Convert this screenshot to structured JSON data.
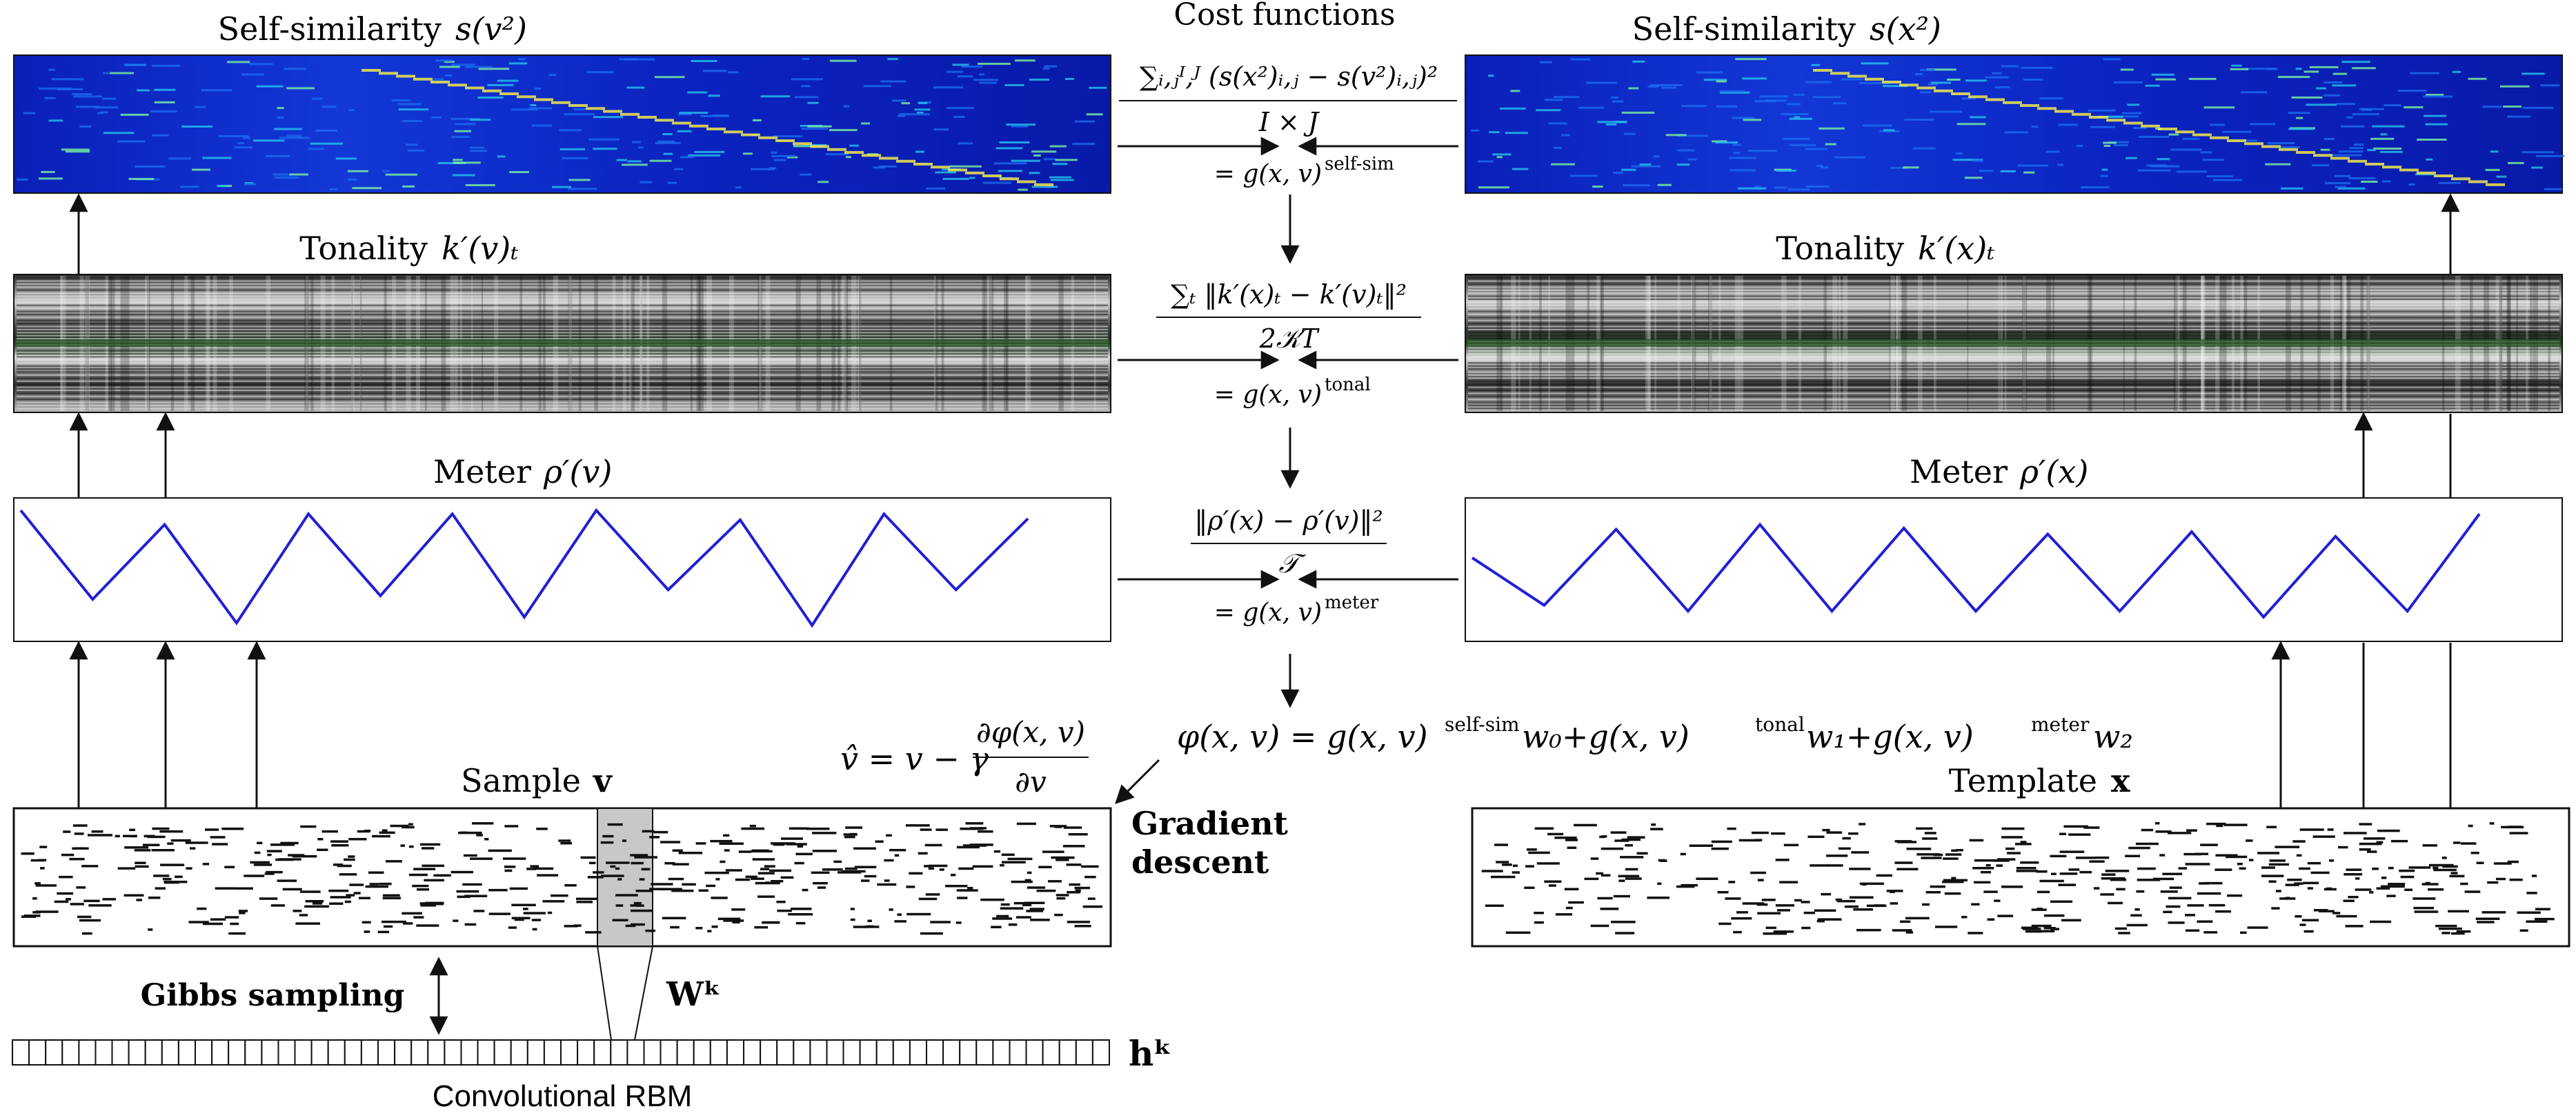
{
  "panels": {
    "selfsim_v": {
      "title": "Self-similarity",
      "symbol": "s(v²)"
    },
    "selfsim_x": {
      "title": "Self-similarity",
      "symbol": "s(x²)"
    },
    "tonality_v": {
      "title": "Tonality",
      "symbol": "k′(v)ₜ"
    },
    "tonality_x": {
      "title": "Tonality",
      "symbol": "k′(x)ₜ"
    },
    "meter_v": {
      "title": "Meter",
      "symbol": "ρ′(v)"
    },
    "meter_x": {
      "title": "Meter",
      "symbol": "ρ′(x)"
    },
    "sample": {
      "title": "Sample",
      "symbol": "v"
    },
    "template": {
      "title": "Template",
      "symbol": "x"
    }
  },
  "cost": {
    "title": "Cost functions",
    "selfsim": {
      "numerator": "∑ᵢ,ⱼᴵ,ᴶ (s(x²)ᵢ,ⱼ − s(v²)ᵢ,ⱼ)²",
      "denominator": "I × J",
      "result": "= g(x, v)",
      "result_sup": "self-sim"
    },
    "tonal": {
      "numerator": "∑ₜ ‖k′(x)ₜ − k′(v)ₜ‖²",
      "denominator": "2𝒦T",
      "result": "= g(x, v)",
      "result_sup": "tonal"
    },
    "meter": {
      "numerator": "‖ρ′(x) − ρ′(v)‖²",
      "denominator": "𝒯",
      "result": "= g(x, v)",
      "result_sup": "meter"
    }
  },
  "objective": {
    "lhs": "φ(x, v) = g(x, v)",
    "sup1": "self-sim",
    "w0": "w₀+g(x, v)",
    "sup2": "tonal",
    "w1": "w₁+g(x, v)",
    "sup3": "meter",
    "w2": "w₂"
  },
  "update": {
    "lhs": "v̂ = v − γ",
    "frac_num": "∂φ(x, v)",
    "frac_den": "∂v"
  },
  "labels": {
    "gradient_line1": "Gradient",
    "gradient_line2": "descent",
    "gibbs": "Gibbs sampling",
    "weights": "Wᵏ",
    "hidden": "hᵏ",
    "rbm": "Convolutional RBM"
  },
  "meter_chart_data": [
    {
      "type": "line",
      "name": "ρ′(v)",
      "x": [
        0,
        1,
        2,
        3,
        4,
        5,
        6,
        7,
        8,
        9,
        10,
        11,
        12,
        13,
        14
      ],
      "y": [
        1.0,
        0.25,
        0.88,
        0.05,
        0.97,
        0.28,
        0.97,
        0.1,
        1.0,
        0.33,
        0.92,
        0.03,
        0.97,
        0.33,
        0.93
      ],
      "color": "#1f1fd6"
    },
    {
      "type": "line",
      "name": "ρ′(x)",
      "x": [
        0,
        1,
        2,
        3,
        4,
        5,
        6,
        7,
        8,
        9,
        10,
        11,
        12,
        13,
        14
      ],
      "y": [
        0.6,
        0.2,
        0.84,
        0.15,
        0.88,
        0.15,
        0.85,
        0.15,
        0.8,
        0.15,
        0.82,
        0.1,
        0.78,
        0.15,
        0.97
      ],
      "color": "#1f1fd6"
    }
  ],
  "colors": {
    "heatmap_bg": "#0a1fb8",
    "meter_line": "#1f1fd6",
    "receptive_field": "#c8c8c8"
  }
}
